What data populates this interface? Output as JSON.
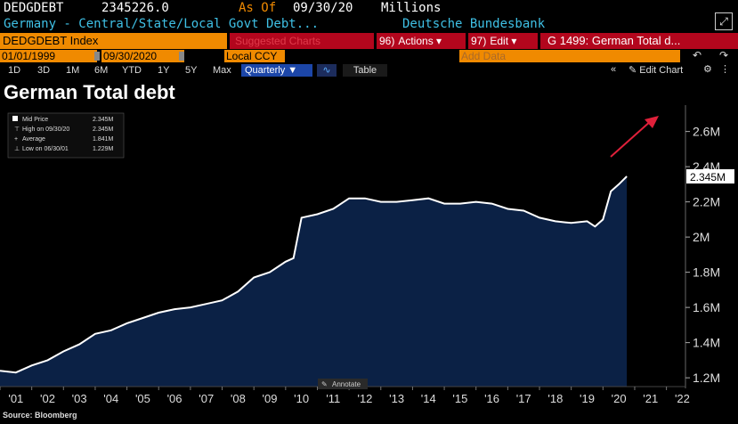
{
  "header": {
    "ticker": "DEDGDEBT",
    "last_value": "2345226.0",
    "as_of_label": "As Of",
    "as_of_date": "09/30/20",
    "units": "Millions",
    "description": "Germany - Central/State/Local Govt Debt...",
    "source_name": "Deutsche Bundesbank"
  },
  "toolbar": {
    "security": "DEDGDEBT Index",
    "suggested": "Suggested Charts",
    "actions_num": "96)",
    "actions_label": "Actions ▾",
    "edit_num": "97)",
    "edit_label": "Edit ▾",
    "chart_field": "G 1499: German Total d..."
  },
  "controls": {
    "start_date": "01/01/1999",
    "end_date": "09/30/2020",
    "currency": "Local CCY",
    "add_data_placeholder": "Add Data",
    "periods": [
      "1D",
      "3D",
      "1M",
      "6M",
      "YTD",
      "1Y",
      "5Y",
      "Max"
    ],
    "frequency": "Quarterly ▼",
    "table_label": "Table",
    "edit_chart_label": "Edit Chart"
  },
  "legend": {
    "mid_price_label": "Mid Price",
    "mid_price_value": "2.345M",
    "high_label": "High on 09/30/20",
    "high_value": "2.345M",
    "average_label": "Average",
    "average_value": "1.841M",
    "low_label": "Low on 06/30/01",
    "low_value": "1.229M"
  },
  "annotate_label": "Annotate",
  "source_text": "Source: Bloomberg",
  "colors": {
    "accent_orange": "#f08a00",
    "toolbar_red": "#b3061d",
    "header_cyan": "#3fc1e6",
    "area_fill": "#0b2145",
    "line": "#ffffff",
    "arrow": "#e0203a"
  },
  "chart_data": {
    "type": "area",
    "title": "German Total debt",
    "xlabel": "",
    "ylabel": "",
    "x_tick_labels": [
      "'01",
      "'02",
      "'03",
      "'04",
      "'05",
      "'06",
      "'07",
      "'08",
      "'09",
      "'10",
      "'11",
      "'12",
      "'13",
      "'14",
      "'15",
      "'16",
      "'17",
      "'18",
      "'19",
      "'20",
      "'21",
      "'22"
    ],
    "y_tick_labels": [
      "1.2M",
      "1.4M",
      "1.6M",
      "1.8M",
      "2M",
      "2.2M",
      "2.4M",
      "2.6M"
    ],
    "ylim": [
      1.15,
      2.75
    ],
    "xlim": [
      2001.0,
      2022.6
    ],
    "last_value_label": "2.345M",
    "grid": false,
    "legend_position": "top-left",
    "x": [
      2001.0,
      2001.5,
      2002.0,
      2002.5,
      2003.0,
      2003.5,
      2004.0,
      2004.5,
      2005.0,
      2005.5,
      2006.0,
      2006.5,
      2007.0,
      2007.5,
      2008.0,
      2008.5,
      2009.0,
      2009.5,
      2010.0,
      2010.25,
      2010.5,
      2011.0,
      2011.5,
      2012.0,
      2012.5,
      2013.0,
      2013.5,
      2014.0,
      2014.5,
      2015.0,
      2015.5,
      2016.0,
      2016.5,
      2017.0,
      2017.5,
      2018.0,
      2018.5,
      2019.0,
      2019.5,
      2019.75,
      2020.0,
      2020.25,
      2020.5,
      2020.75
    ],
    "values": [
      1.24,
      1.23,
      1.27,
      1.3,
      1.35,
      1.39,
      1.45,
      1.47,
      1.51,
      1.54,
      1.57,
      1.59,
      1.6,
      1.62,
      1.64,
      1.69,
      1.77,
      1.8,
      1.86,
      1.88,
      2.11,
      2.13,
      2.16,
      2.22,
      2.22,
      2.2,
      2.2,
      2.21,
      2.22,
      2.19,
      2.19,
      2.2,
      2.19,
      2.16,
      2.15,
      2.11,
      2.09,
      2.08,
      2.09,
      2.06,
      2.1,
      2.26,
      2.3,
      2.345
    ]
  }
}
